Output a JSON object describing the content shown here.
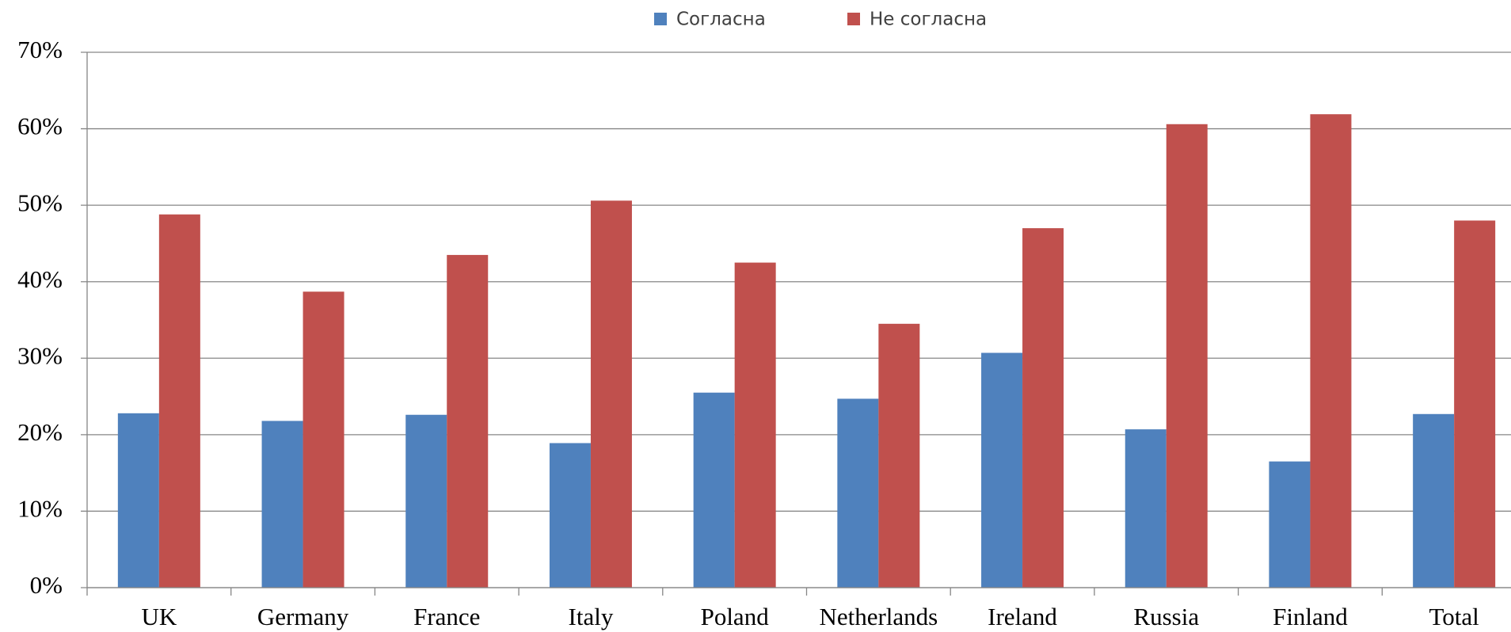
{
  "chart_data": {
    "type": "bar",
    "categories": [
      "UK",
      "Germany",
      "France",
      "Italy",
      "Poland",
      "Netherlands",
      "Ireland",
      "Russia",
      "Finland",
      "Total"
    ],
    "series": [
      {
        "name": "Согласна",
        "color": "#4f81bd",
        "values": [
          22.8,
          21.8,
          22.6,
          18.9,
          25.5,
          24.7,
          30.7,
          20.7,
          16.5,
          22.7
        ]
      },
      {
        "name": "Не согласна",
        "color": "#c0504d",
        "values": [
          48.8,
          38.7,
          43.5,
          50.6,
          42.5,
          34.5,
          47.0,
          60.6,
          61.9,
          48.0
        ]
      }
    ],
    "ylim": [
      0,
      70
    ],
    "yticks": [
      {
        "value": 0,
        "label": "0%"
      },
      {
        "value": 10,
        "label": "10%"
      },
      {
        "value": 20,
        "label": "20%"
      },
      {
        "value": 30,
        "label": "30%"
      },
      {
        "value": 40,
        "label": "40%"
      },
      {
        "value": 50,
        "label": "50%"
      },
      {
        "value": 60,
        "label": "60%"
      },
      {
        "value": 70,
        "label": "70%"
      }
    ],
    "grid": true,
    "legend": "top"
  }
}
